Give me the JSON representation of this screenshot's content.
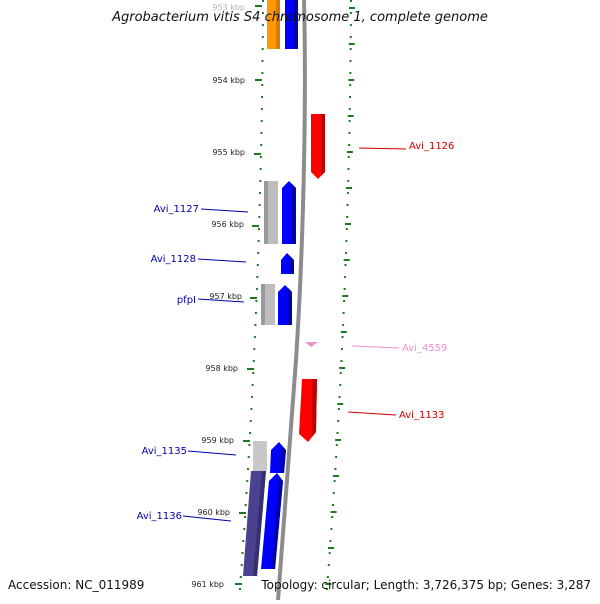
{
  "title": "Agrobacterium vitis S4 chromosome 1, complete genome",
  "accession": "Accession: NC_011989",
  "summary": "Topology: circular; Length: 3,726,375 bp; Genes: 3,287",
  "colors": {
    "backbone": "#8c8c8c",
    "tick": "#1f7a1f",
    "forward_cds": "#0000ff",
    "reverse_cds": "#ff0000",
    "gene_gray": "#bdbdbd",
    "orange": "#ff9900",
    "dark_gene": "#4a4290",
    "pink": "#f08fc8"
  },
  "ticks": [
    "953 kbp",
    "954 kbp",
    "955 kbp",
    "956 kbp",
    "957 kbp",
    "958 kbp",
    "959 kbp",
    "960 kbp",
    "961 kbp"
  ],
  "labels": {
    "avi_1126": "Avi_1126",
    "avi_1127": "Avi_1127",
    "avi_1128": "Avi_1128",
    "pfpi": "pfpI",
    "avi_4559": "Avi_4559",
    "avi_1133": "Avi_1133",
    "avi_1135": "Avi_1135",
    "avi_1136": "Avi_1136"
  }
}
